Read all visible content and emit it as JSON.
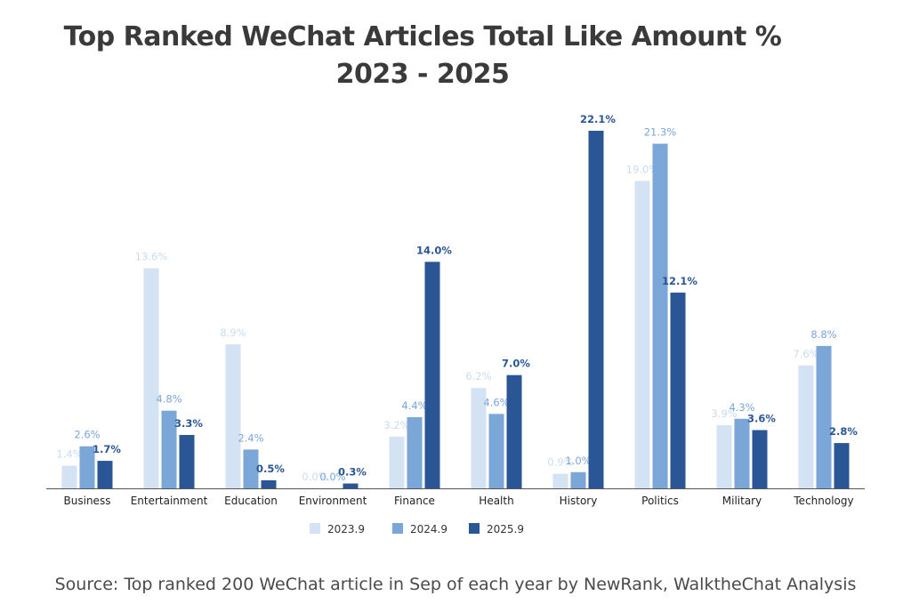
{
  "chart_data": {
    "type": "bar",
    "title_lines": [
      "Top Ranked WeChat Articles Total Like Amount %",
      "2023 - 2025"
    ],
    "categories": [
      "Business",
      "Entertainment",
      "Education",
      "Environment",
      "Finance",
      "Health",
      "History",
      "Politics",
      "Military",
      "Technology"
    ],
    "series": [
      {
        "name": "2023.9",
        "color": "#d4e3f3",
        "label_color": "#c9dcf0",
        "values": [
          1.4,
          13.6,
          8.9,
          0.0,
          3.2,
          6.2,
          0.9,
          19.0,
          3.9,
          7.6
        ],
        "labels": [
          "1.4%",
          "13.6%",
          "8.9%",
          "0.0%",
          "3.2%",
          "6.2%",
          "0.9%",
          "19.0%",
          "3.9%",
          "7.6%"
        ]
      },
      {
        "name": "2024.9",
        "color": "#7aa6d8",
        "label_color": "#7aa6d8",
        "values": [
          2.6,
          4.8,
          2.4,
          0.0,
          4.4,
          4.6,
          1.0,
          21.3,
          4.3,
          8.8
        ],
        "labels": [
          "2.6%",
          "4.8%",
          "2.4%",
          "0.0%",
          "4.4%",
          "4.6%",
          "1.0%",
          "21.3%",
          "4.3%",
          "8.8%"
        ]
      },
      {
        "name": "2025.9",
        "color": "#2a5696",
        "label_color": "#2a5696",
        "values": [
          1.7,
          3.3,
          0.5,
          0.3,
          14.0,
          7.0,
          22.1,
          12.1,
          3.6,
          2.8
        ],
        "labels": [
          "1.7%",
          "3.3%",
          "0.5%",
          "0.3%",
          "14.0%",
          "7.0%",
          "22.1%",
          "12.1%",
          "3.6%",
          "2.8%"
        ]
      }
    ],
    "ylim": [
      0,
      22.1
    ],
    "grid": false,
    "legend_position": "bottom"
  },
  "source": "Source: Top ranked 200 WeChat article in Sep of each year by NewRank, WalktheChat Analysis"
}
